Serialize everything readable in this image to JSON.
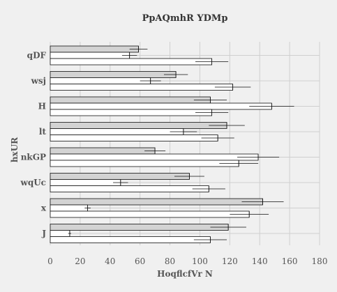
{
  "chart_data": {
    "type": "bar",
    "orientation": "horizontal",
    "title": "PpAQmhR YDMp",
    "xlabel": "HoqflcfVr N",
    "ylabel": "hxUR",
    "xlim": [
      0,
      180
    ],
    "xticks": [
      "0",
      "20",
      "40",
      "60",
      "80",
      "100",
      "120",
      "140",
      "160",
      "180"
    ],
    "grid": true,
    "legend": "none",
    "categories": [
      "qDF",
      "wsj",
      "H",
      "lt",
      "nkGP",
      "wqUc",
      "x",
      "J"
    ],
    "series": [
      {
        "color": "#d3d3d3",
        "values": [
          59,
          84,
          107,
          118,
          70,
          93,
          142,
          119
        ],
        "errors": [
          6,
          8,
          11,
          12,
          7,
          10,
          14,
          12
        ]
      },
      {
        "color": "#ffffff",
        "values": [
          53,
          67,
          148,
          89,
          139,
          47,
          25,
          13
        ],
        "errors": [
          5,
          7,
          15,
          9,
          14,
          5,
          2,
          1
        ]
      },
      {
        "color": "#ffffff",
        "values": [
          108,
          122,
          108,
          112,
          126,
          106,
          133,
          107
        ],
        "errors": [
          11,
          12,
          11,
          11,
          13,
          11,
          13,
          11
        ]
      }
    ]
  }
}
